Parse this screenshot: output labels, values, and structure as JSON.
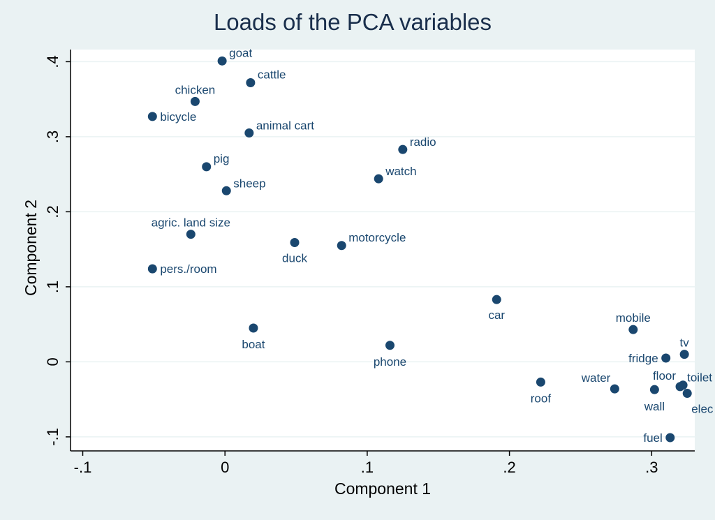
{
  "chart_data": {
    "type": "scatter",
    "title": "Loads of the PCA variables",
    "xlabel": "Component 1",
    "ylabel": "Component 2",
    "xlim": [
      -0.1,
      0.33
    ],
    "ylim": [
      -0.1,
      0.41
    ],
    "xticks": [
      {
        "v": -0.1,
        "label": "-.1"
      },
      {
        "v": 0,
        "label": "0"
      },
      {
        "v": 0.1,
        "label": ".1"
      },
      {
        "v": 0.2,
        "label": ".2"
      },
      {
        "v": 0.3,
        "label": ".3"
      }
    ],
    "yticks": [
      {
        "v": -0.1,
        "label": "-.1"
      },
      {
        "v": 0,
        "label": "0"
      },
      {
        "v": 0.1,
        "label": ".1"
      },
      {
        "v": 0.2,
        "label": ".2"
      },
      {
        "v": 0.3,
        "label": ".3"
      },
      {
        "v": 0.4,
        "label": ".4"
      }
    ],
    "grid": true,
    "marker_color": "#1a476f",
    "points": [
      {
        "label": "goat",
        "x": -0.002,
        "y": 0.401
      },
      {
        "label": "cattle",
        "x": 0.018,
        "y": 0.372
      },
      {
        "label": "chicken",
        "x": -0.021,
        "y": 0.347
      },
      {
        "label": "bicycle",
        "x": -0.051,
        "y": 0.327
      },
      {
        "label": "animal cart",
        "x": 0.017,
        "y": 0.305
      },
      {
        "label": "radio",
        "x": 0.125,
        "y": 0.283
      },
      {
        "label": "pig",
        "x": -0.013,
        "y": 0.26
      },
      {
        "label": "watch",
        "x": 0.108,
        "y": 0.244
      },
      {
        "label": "sheep",
        "x": 0.001,
        "y": 0.228
      },
      {
        "label": "agric. land size",
        "x": -0.024,
        "y": 0.17
      },
      {
        "label": "duck",
        "x": 0.049,
        "y": 0.159
      },
      {
        "label": "motorcycle",
        "x": 0.082,
        "y": 0.155
      },
      {
        "label": "pers./room",
        "x": -0.051,
        "y": 0.124
      },
      {
        "label": "car",
        "x": 0.191,
        "y": 0.083
      },
      {
        "label": "boat",
        "x": 0.02,
        "y": 0.045
      },
      {
        "label": "mobile",
        "x": 0.287,
        "y": 0.043
      },
      {
        "label": "phone",
        "x": 0.116,
        "y": 0.022
      },
      {
        "label": "tv",
        "x": 0.323,
        "y": 0.01
      },
      {
        "label": "fridge",
        "x": 0.31,
        "y": 0.005
      },
      {
        "label": "roof",
        "x": 0.222,
        "y": -0.027
      },
      {
        "label": "floor",
        "x": 0.32,
        "y": -0.033
      },
      {
        "label": "toilet",
        "x": 0.322,
        "y": -0.031
      },
      {
        "label": "water",
        "x": 0.274,
        "y": -0.036
      },
      {
        "label": "wall",
        "x": 0.302,
        "y": -0.037
      },
      {
        "label": "elec",
        "x": 0.325,
        "y": -0.042
      },
      {
        "label": "fuel",
        "x": 0.313,
        "y": -0.101
      }
    ]
  }
}
